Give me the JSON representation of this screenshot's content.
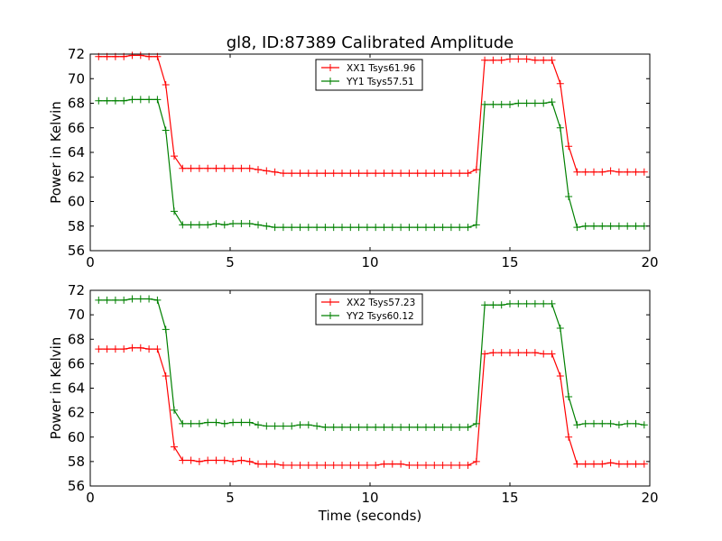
{
  "title": "gl8, ID:87389 Calibrated Amplitude",
  "chart_data": [
    {
      "type": "line",
      "ylabel": "Power in Kelvin",
      "xlabel": "",
      "xlim": [
        0,
        20
      ],
      "ylim": [
        56,
        72
      ],
      "xticks": [
        0,
        5,
        10,
        15,
        20
      ],
      "yticks": [
        56,
        58,
        60,
        62,
        64,
        66,
        68,
        70,
        72
      ],
      "grid": false,
      "legend_position": "top-center",
      "series": [
        {
          "name": "XX1 Tsys61.96",
          "color": "#ff0000",
          "x": [
            0.3,
            0.6,
            0.9,
            1.2,
            1.5,
            1.8,
            2.1,
            2.4,
            2.7,
            3.0,
            3.3,
            3.6,
            3.9,
            4.2,
            4.5,
            4.8,
            5.1,
            5.4,
            5.7,
            6.0,
            6.3,
            6.6,
            6.9,
            7.2,
            7.5,
            7.8,
            8.1,
            8.4,
            8.7,
            9.0,
            9.3,
            9.6,
            9.9,
            10.2,
            10.5,
            10.8,
            11.1,
            11.4,
            11.7,
            12.0,
            12.3,
            12.6,
            12.9,
            13.2,
            13.5,
            13.8,
            14.1,
            14.4,
            14.7,
            15.0,
            15.3,
            15.6,
            15.9,
            16.2,
            16.5,
            16.8,
            17.1,
            17.4,
            17.7,
            18.0,
            18.3,
            18.6,
            18.9,
            19.2,
            19.5,
            19.8
          ],
          "y": [
            71.8,
            71.8,
            71.8,
            71.8,
            71.9,
            71.9,
            71.8,
            71.8,
            69.5,
            63.7,
            62.7,
            62.7,
            62.7,
            62.7,
            62.7,
            62.7,
            62.7,
            62.7,
            62.7,
            62.6,
            62.5,
            62.4,
            62.3,
            62.3,
            62.3,
            62.3,
            62.3,
            62.3,
            62.3,
            62.3,
            62.3,
            62.3,
            62.3,
            62.3,
            62.3,
            62.3,
            62.3,
            62.3,
            62.3,
            62.3,
            62.3,
            62.3,
            62.3,
            62.3,
            62.3,
            62.6,
            71.5,
            71.5,
            71.5,
            71.6,
            71.6,
            71.6,
            71.5,
            71.5,
            71.5,
            69.6,
            64.5,
            62.4,
            62.4,
            62.4,
            62.4,
            62.5,
            62.4,
            62.4,
            62.4,
            62.4
          ]
        },
        {
          "name": "YY1 Tsys57.51",
          "color": "#008000",
          "x": [
            0.3,
            0.6,
            0.9,
            1.2,
            1.5,
            1.8,
            2.1,
            2.4,
            2.7,
            3.0,
            3.3,
            3.6,
            3.9,
            4.2,
            4.5,
            4.8,
            5.1,
            5.4,
            5.7,
            6.0,
            6.3,
            6.6,
            6.9,
            7.2,
            7.5,
            7.8,
            8.1,
            8.4,
            8.7,
            9.0,
            9.3,
            9.6,
            9.9,
            10.2,
            10.5,
            10.8,
            11.1,
            11.4,
            11.7,
            12.0,
            12.3,
            12.6,
            12.9,
            13.2,
            13.5,
            13.8,
            14.1,
            14.4,
            14.7,
            15.0,
            15.3,
            15.6,
            15.9,
            16.2,
            16.5,
            16.8,
            17.1,
            17.4,
            17.7,
            18.0,
            18.3,
            18.6,
            18.9,
            19.2,
            19.5,
            19.8
          ],
          "y": [
            68.2,
            68.2,
            68.2,
            68.2,
            68.3,
            68.3,
            68.3,
            68.3,
            65.8,
            59.2,
            58.1,
            58.1,
            58.1,
            58.1,
            58.2,
            58.1,
            58.2,
            58.2,
            58.2,
            58.1,
            58.0,
            57.9,
            57.9,
            57.9,
            57.9,
            57.9,
            57.9,
            57.9,
            57.9,
            57.9,
            57.9,
            57.9,
            57.9,
            57.9,
            57.9,
            57.9,
            57.9,
            57.9,
            57.9,
            57.9,
            57.9,
            57.9,
            57.9,
            57.9,
            57.9,
            58.1,
            67.9,
            67.9,
            67.9,
            67.9,
            68.0,
            68.0,
            68.0,
            68.0,
            68.1,
            66.0,
            60.4,
            57.9,
            58.0,
            58.0,
            58.0,
            58.0,
            58.0,
            58.0,
            58.0,
            58.0
          ]
        }
      ]
    },
    {
      "type": "line",
      "ylabel": "Power in Kelvin",
      "xlabel": "Time (seconds)",
      "xlim": [
        0,
        20
      ],
      "ylim": [
        56,
        72
      ],
      "xticks": [
        0,
        5,
        10,
        15,
        20
      ],
      "yticks": [
        56,
        58,
        60,
        62,
        64,
        66,
        68,
        70,
        72
      ],
      "grid": false,
      "legend_position": "top-center",
      "series": [
        {
          "name": "XX2 Tsys57.23",
          "color": "#ff0000",
          "x": [
            0.3,
            0.6,
            0.9,
            1.2,
            1.5,
            1.8,
            2.1,
            2.4,
            2.7,
            3.0,
            3.3,
            3.6,
            3.9,
            4.2,
            4.5,
            4.8,
            5.1,
            5.4,
            5.7,
            6.0,
            6.3,
            6.6,
            6.9,
            7.2,
            7.5,
            7.8,
            8.1,
            8.4,
            8.7,
            9.0,
            9.3,
            9.6,
            9.9,
            10.2,
            10.5,
            10.8,
            11.1,
            11.4,
            11.7,
            12.0,
            12.3,
            12.6,
            12.9,
            13.2,
            13.5,
            13.8,
            14.1,
            14.4,
            14.7,
            15.0,
            15.3,
            15.6,
            15.9,
            16.2,
            16.5,
            16.8,
            17.1,
            17.4,
            17.7,
            18.0,
            18.3,
            18.6,
            18.9,
            19.2,
            19.5,
            19.8
          ],
          "y": [
            67.2,
            67.2,
            67.2,
            67.2,
            67.3,
            67.3,
            67.2,
            67.2,
            65.0,
            59.2,
            58.1,
            58.1,
            58.0,
            58.1,
            58.1,
            58.1,
            58.0,
            58.1,
            58.0,
            57.8,
            57.8,
            57.8,
            57.7,
            57.7,
            57.7,
            57.7,
            57.7,
            57.7,
            57.7,
            57.7,
            57.7,
            57.7,
            57.7,
            57.7,
            57.8,
            57.8,
            57.8,
            57.7,
            57.7,
            57.7,
            57.7,
            57.7,
            57.7,
            57.7,
            57.7,
            58.0,
            66.8,
            66.9,
            66.9,
            66.9,
            66.9,
            66.9,
            66.9,
            66.8,
            66.8,
            65.0,
            60.0,
            57.8,
            57.8,
            57.8,
            57.8,
            57.9,
            57.8,
            57.8,
            57.8,
            57.8
          ]
        },
        {
          "name": "YY2 Tsys60.12",
          "color": "#008000",
          "x": [
            0.3,
            0.6,
            0.9,
            1.2,
            1.5,
            1.8,
            2.1,
            2.4,
            2.7,
            3.0,
            3.3,
            3.6,
            3.9,
            4.2,
            4.5,
            4.8,
            5.1,
            5.4,
            5.7,
            6.0,
            6.3,
            6.6,
            6.9,
            7.2,
            7.5,
            7.8,
            8.1,
            8.4,
            8.7,
            9.0,
            9.3,
            9.6,
            9.9,
            10.2,
            10.5,
            10.8,
            11.1,
            11.4,
            11.7,
            12.0,
            12.3,
            12.6,
            12.9,
            13.2,
            13.5,
            13.8,
            14.1,
            14.4,
            14.7,
            15.0,
            15.3,
            15.6,
            15.9,
            16.2,
            16.5,
            16.8,
            17.1,
            17.4,
            17.7,
            18.0,
            18.3,
            18.6,
            18.9,
            19.2,
            19.5,
            19.8
          ],
          "y": [
            71.2,
            71.2,
            71.2,
            71.2,
            71.3,
            71.3,
            71.3,
            71.2,
            68.8,
            62.2,
            61.1,
            61.1,
            61.1,
            61.2,
            61.2,
            61.1,
            61.2,
            61.2,
            61.2,
            61.0,
            60.9,
            60.9,
            60.9,
            60.9,
            61.0,
            61.0,
            60.9,
            60.8,
            60.8,
            60.8,
            60.8,
            60.8,
            60.8,
            60.8,
            60.8,
            60.8,
            60.8,
            60.8,
            60.8,
            60.8,
            60.8,
            60.8,
            60.8,
            60.8,
            60.8,
            61.1,
            70.8,
            70.8,
            70.8,
            70.9,
            70.9,
            70.9,
            70.9,
            70.9,
            70.9,
            68.9,
            63.3,
            61.0,
            61.1,
            61.1,
            61.1,
            61.1,
            61.0,
            61.1,
            61.1,
            61.0
          ]
        }
      ]
    }
  ]
}
